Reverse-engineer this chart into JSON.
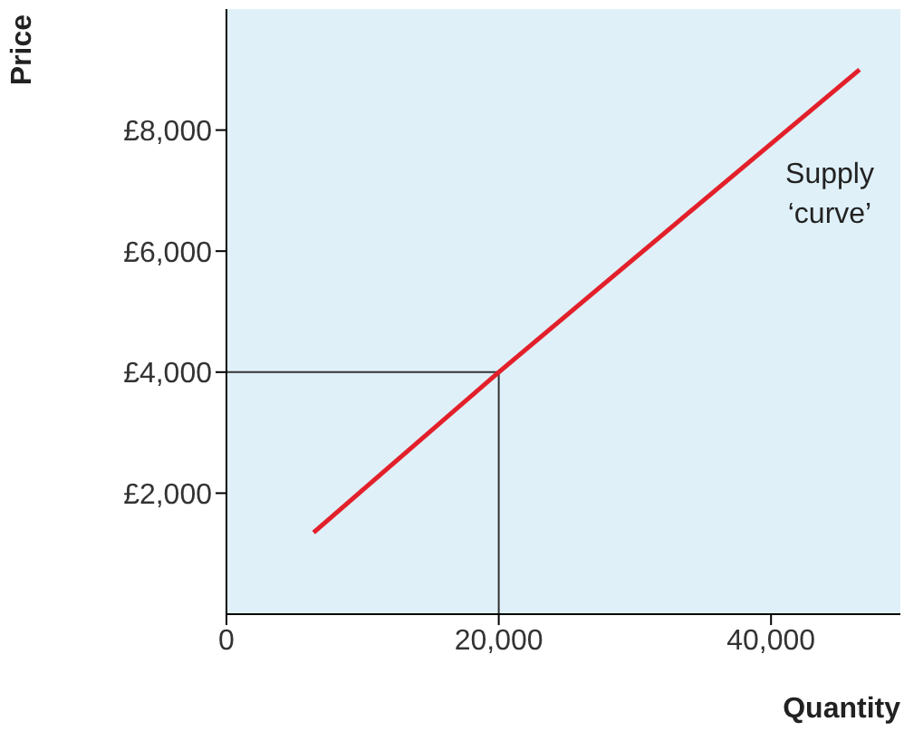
{
  "chart_data": {
    "type": "line",
    "xlabel": "Quantity",
    "ylabel": "Price",
    "xlim": [
      0,
      49500
    ],
    "xticks": [
      {
        "value": 0,
        "label": "0"
      },
      {
        "value": 20000,
        "label": "20,000"
      },
      {
        "value": 40000,
        "label": "40,000"
      }
    ],
    "ylim": [
      0,
      10000
    ],
    "yticks": [
      {
        "value": 2000,
        "label": "£2,000"
      },
      {
        "value": 4000,
        "label": "£4,000"
      },
      {
        "value": 6000,
        "label": "£6,000"
      },
      {
        "value": 8000,
        "label": "£8,000"
      }
    ],
    "series": [
      {
        "name": "Supply ‘curve’",
        "color": "#e3202a",
        "x": [
          6400,
          20000,
          46500
        ],
        "values": [
          1350,
          4000,
          9000
        ]
      }
    ],
    "ref_lines": [
      {
        "axis": "y",
        "value": 4000,
        "color": "#333333"
      },
      {
        "axis": "x",
        "value": 20000,
        "color": "#333333"
      }
    ],
    "marker": "none",
    "line_style": "solid"
  }
}
